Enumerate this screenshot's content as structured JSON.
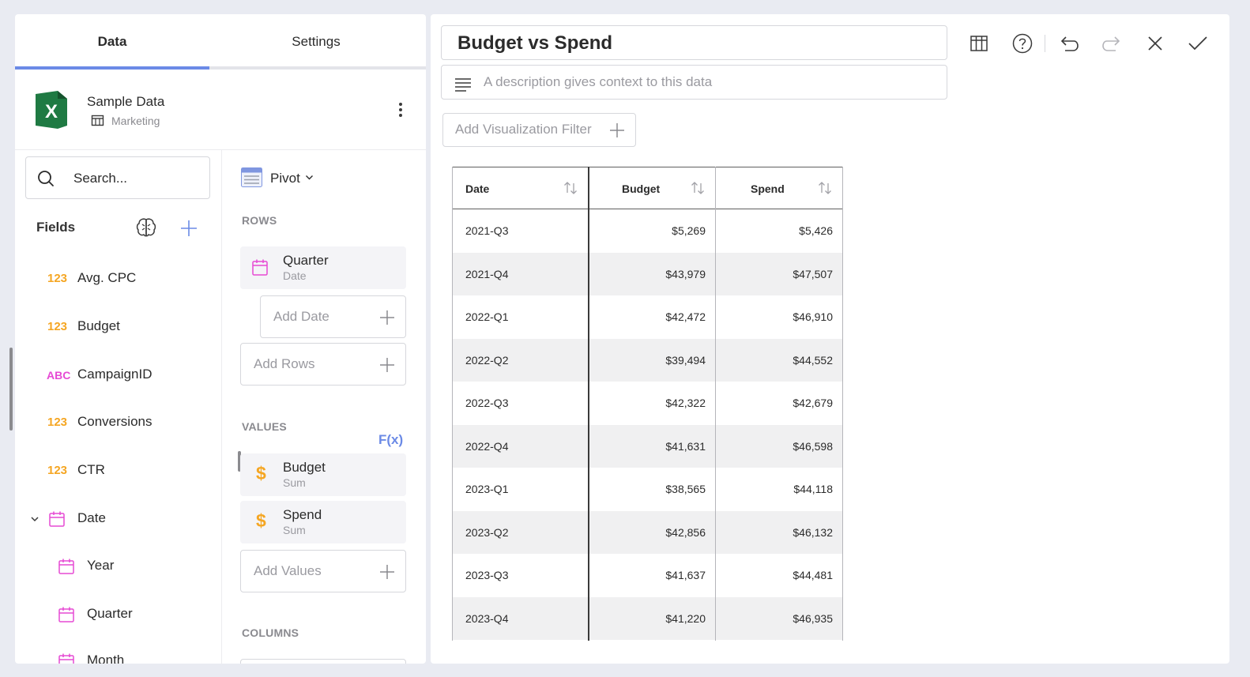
{
  "tabs": [
    {
      "label": "Data"
    },
    {
      "label": "Settings"
    }
  ],
  "source": {
    "name": "Sample Data",
    "sheet": "Marketing"
  },
  "search": {
    "placeholder": "Search..."
  },
  "fields": {
    "title": "Fields",
    "items": [
      {
        "type": "123",
        "label": "Avg. CPC"
      },
      {
        "type": "123",
        "label": "Budget"
      },
      {
        "type": "ABC",
        "label": "CampaignID"
      },
      {
        "type": "123",
        "label": "Conversions"
      },
      {
        "type": "123",
        "label": "CTR"
      },
      {
        "type": "date",
        "label": "Date",
        "expanded": true
      },
      {
        "type": "date",
        "label": "Year",
        "child": true
      },
      {
        "type": "date",
        "label": "Quarter",
        "child": true
      },
      {
        "type": "date",
        "label": "Month",
        "child": true
      }
    ]
  },
  "pivot": {
    "mode": "Pivot",
    "rows_label": "ROWS",
    "rows": [
      {
        "name": "Quarter",
        "sub": "Date"
      }
    ],
    "add_date": "Add Date",
    "add_rows": "Add Rows",
    "values_label": "VALUES",
    "fx": "F(x)",
    "values": [
      {
        "name": "Budget",
        "sub": "Sum"
      },
      {
        "name": "Spend",
        "sub": "Sum"
      }
    ],
    "add_values": "Add Values",
    "columns_label": "COLUMNS"
  },
  "viz": {
    "title": "Budget vs Spend",
    "description_placeholder": "A description gives context to this data",
    "add_filter": "Add Visualization Filter"
  },
  "table": {
    "headers": [
      "Date",
      "Budget",
      "Spend"
    ],
    "rows": [
      [
        "2021-Q3",
        "$5,269",
        "$5,426"
      ],
      [
        "2021-Q4",
        "$43,979",
        "$47,507"
      ],
      [
        "2022-Q1",
        "$42,472",
        "$46,910"
      ],
      [
        "2022-Q2",
        "$39,494",
        "$44,552"
      ],
      [
        "2022-Q3",
        "$42,322",
        "$42,679"
      ],
      [
        "2022-Q4",
        "$41,631",
        "$46,598"
      ],
      [
        "2023-Q1",
        "$38,565",
        "$44,118"
      ],
      [
        "2023-Q2",
        "$42,856",
        "$46,132"
      ],
      [
        "2023-Q3",
        "$41,637",
        "$44,481"
      ],
      [
        "2023-Q4",
        "$41,220",
        "$46,935"
      ]
    ]
  },
  "colors": {
    "accent": "#6b8ae6",
    "number_type": "#f5a623",
    "text_type": "#e64ad4",
    "excel": "#1f7a43"
  },
  "icons": {
    "toolbar": [
      "table-view-icon",
      "help-icon",
      "undo-icon",
      "redo-icon",
      "close-icon",
      "check-icon"
    ]
  }
}
